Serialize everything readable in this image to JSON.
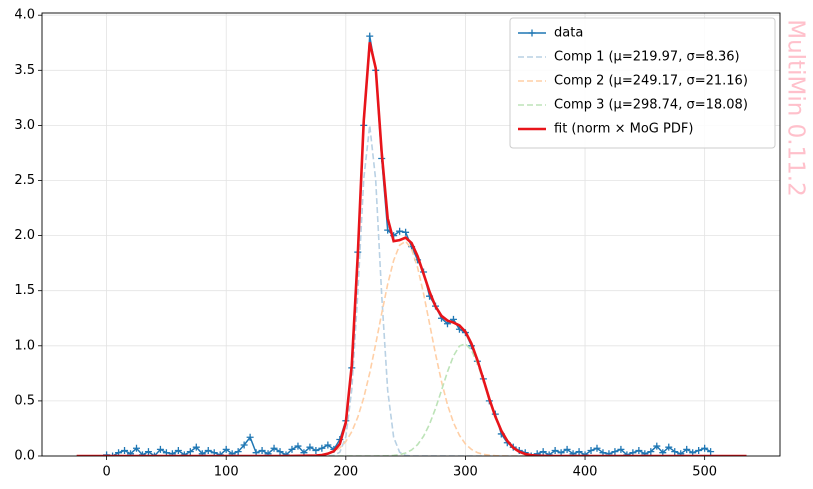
{
  "chart_data": {
    "type": "line",
    "watermark": "MultiMin 0.11.2",
    "xlim": [
      -54,
      563
    ],
    "ylim": [
      0,
      4.02
    ],
    "xticks": [
      0,
      100,
      200,
      300,
      400,
      500
    ],
    "yticks": [
      {
        "value": 0,
        "label": "0.0"
      },
      {
        "value": 0.5,
        "label": "0.5"
      },
      {
        "value": 1,
        "label": "1.0"
      },
      {
        "value": 1.5,
        "label": "1.5"
      },
      {
        "value": 2,
        "label": "2.0"
      },
      {
        "value": 2.5,
        "label": "2.5"
      },
      {
        "value": 3,
        "label": "3.0"
      },
      {
        "value": 3.5,
        "label": "3.5"
      },
      {
        "value": 4,
        "label": "4.0"
      }
    ],
    "grid": true,
    "legend": "upper right",
    "series": [
      {
        "name": "data",
        "color": "#1f77b4",
        "style": "marker-line",
        "x": [
          0,
          5,
          10,
          15,
          20,
          25,
          30,
          35,
          40,
          45,
          50,
          55,
          60,
          65,
          70,
          75,
          80,
          85,
          90,
          95,
          100,
          105,
          110,
          115,
          120,
          125,
          130,
          135,
          140,
          145,
          150,
          155,
          160,
          165,
          170,
          175,
          180,
          185,
          190,
          195,
          200,
          205,
          210,
          215,
          220,
          225,
          230,
          235,
          240,
          245,
          250,
          255,
          260,
          265,
          270,
          275,
          280,
          285,
          290,
          295,
          300,
          305,
          310,
          315,
          320,
          325,
          330,
          335,
          340,
          345,
          350,
          355,
          360,
          365,
          370,
          375,
          380,
          385,
          390,
          395,
          400,
          405,
          410,
          415,
          420,
          425,
          430,
          435,
          440,
          445,
          450,
          455,
          460,
          465,
          470,
          475,
          480,
          485,
          490,
          495,
          500,
          505
        ],
        "values": [
          0.01,
          0,
          0.03,
          0.05,
          0.02,
          0.07,
          0.01,
          0.04,
          0,
          0.06,
          0.03,
          0.02,
          0.05,
          0.01,
          0.04,
          0.08,
          0.02,
          0.05,
          0.03,
          0.01,
          0.06,
          0.02,
          0.04,
          0.1,
          0.17,
          0.03,
          0.05,
          0.02,
          0.07,
          0.04,
          0.01,
          0.06,
          0.09,
          0.03,
          0.08,
          0.05,
          0.07,
          0.1,
          0.06,
          0.15,
          0.32,
          0.8,
          1.85,
          3.0,
          3.81,
          3.5,
          2.7,
          2.05,
          2.0,
          2.04,
          2.03,
          1.9,
          1.78,
          1.67,
          1.45,
          1.36,
          1.25,
          1.2,
          1.24,
          1.15,
          1.12,
          1.0,
          0.86,
          0.7,
          0.5,
          0.38,
          0.2,
          0.12,
          0.08,
          0.05,
          0.03,
          0,
          0.02,
          0.04,
          0.01,
          0.05,
          0.03,
          0.06,
          0.02,
          0.04,
          0.01,
          0.05,
          0.07,
          0.03,
          0.02,
          0.04,
          0.06,
          0.01,
          0.03,
          0.05,
          0.02,
          0.04,
          0.09,
          0.03,
          0.08,
          0.04,
          0.02,
          0.06,
          0.03,
          0.05,
          0.07,
          0.04
        ]
      },
      {
        "name": "Comp 1 (μ=219.97, σ=8.36)",
        "color": "#b9d1e4",
        "style": "dashed",
        "x": [
          -25,
          150,
          175,
          180,
          185,
          190,
          195,
          200,
          205,
          210,
          215,
          220,
          225,
          230,
          235,
          240,
          245,
          250,
          255,
          260,
          265,
          270,
          275,
          280,
          285,
          290,
          295,
          300,
          305,
          310,
          315,
          320,
          325,
          330,
          335,
          340,
          345,
          350,
          355,
          360,
          370,
          380,
          400,
          535
        ],
        "values": [
          0,
          0,
          0,
          0,
          0.001,
          0.005,
          0.035,
          0.173,
          0.604,
          1.473,
          2.514,
          3.0,
          2.503,
          1.461,
          0.596,
          0.17,
          0.034,
          0.005,
          0,
          0,
          0,
          0,
          0,
          0,
          0,
          0,
          0,
          0,
          0,
          0,
          0,
          0,
          0,
          0,
          0,
          0,
          0,
          0,
          0,
          0,
          0,
          0,
          0,
          0
        ]
      },
      {
        "name": "Comp 2 (μ=249.17, σ=21.16)",
        "color": "#ffcfa6",
        "style": "dashed",
        "x": [
          -25,
          150,
          175,
          180,
          185,
          190,
          195,
          200,
          205,
          210,
          215,
          220,
          225,
          230,
          235,
          240,
          245,
          250,
          255,
          260,
          265,
          270,
          275,
          280,
          285,
          290,
          295,
          300,
          305,
          310,
          315,
          320,
          325,
          330,
          335,
          340,
          345,
          350,
          355,
          360,
          370,
          380,
          400,
          535
        ],
        "values": [
          0,
          0,
          0.004,
          0.009,
          0.02,
          0.039,
          0.074,
          0.131,
          0.221,
          0.352,
          0.529,
          0.754,
          1.016,
          1.294,
          1.559,
          1.775,
          1.913,
          1.949,
          1.877,
          1.711,
          1.474,
          1.201,
          0.926,
          0.675,
          0.465,
          0.303,
          0.187,
          0.109,
          0.06,
          0.031,
          0.015,
          0.007,
          0.003,
          0.001,
          0,
          0,
          0,
          0,
          0,
          0,
          0,
          0,
          0,
          0
        ]
      },
      {
        "name": "Comp 3 (μ=298.74, σ=18.08)",
        "color": "#bde3b8",
        "style": "dashed",
        "x": [
          -25,
          150,
          175,
          180,
          185,
          190,
          195,
          200,
          205,
          210,
          215,
          220,
          225,
          230,
          235,
          240,
          245,
          250,
          255,
          260,
          265,
          270,
          275,
          280,
          285,
          290,
          295,
          300,
          305,
          310,
          315,
          320,
          325,
          330,
          335,
          340,
          345,
          350,
          355,
          360,
          370,
          380,
          400,
          535
        ],
        "values": [
          0,
          0,
          0,
          0,
          0,
          0,
          0,
          0,
          0,
          0,
          0,
          0,
          0,
          0.001,
          0.002,
          0.005,
          0.012,
          0.027,
          0.055,
          0.103,
          0.179,
          0.289,
          0.431,
          0.596,
          0.764,
          0.908,
          0.998,
          1.018,
          0.961,
          0.84,
          0.681,
          0.511,
          0.355,
          0.229,
          0.137,
          0.075,
          0.039,
          0.018,
          0.008,
          0.003,
          0,
          0,
          0,
          0
        ]
      },
      {
        "name": "fit (norm × MoG PDF)",
        "color": "#e8141a",
        "style": "thick",
        "x": [
          -25,
          150,
          175,
          180,
          185,
          190,
          195,
          200,
          205,
          210,
          215,
          220,
          225,
          230,
          235,
          240,
          245,
          250,
          255,
          260,
          265,
          270,
          275,
          280,
          285,
          290,
          295,
          300,
          305,
          310,
          315,
          320,
          325,
          330,
          335,
          340,
          345,
          350,
          355,
          360,
          370,
          380,
          400,
          535
        ],
        "values": [
          0,
          0,
          0.004,
          0.009,
          0.021,
          0.044,
          0.109,
          0.304,
          0.825,
          1.825,
          3.043,
          3.754,
          3.519,
          2.756,
          2.157,
          1.95,
          1.959,
          1.981,
          1.932,
          1.814,
          1.653,
          1.49,
          1.357,
          1.271,
          1.229,
          1.211,
          1.185,
          1.127,
          1.021,
          0.871,
          0.696,
          0.518,
          0.358,
          0.23,
          0.137,
          0.075,
          0.039,
          0.018,
          0.008,
          0.003,
          0,
          0,
          0,
          0
        ]
      }
    ]
  }
}
